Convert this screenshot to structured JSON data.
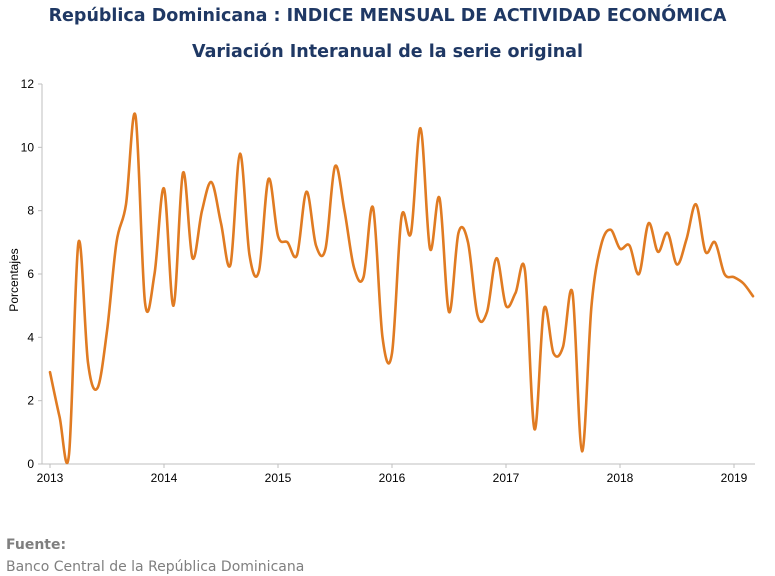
{
  "header": {
    "title": "República Dominicana : INDICE MENSUAL DE ACTIVIDAD ECONÓMICA",
    "subtitle": "Variación Interanual de la serie original"
  },
  "footer": {
    "source_label": "Fuente:",
    "source_text": "Banco Central de la República Dominicana"
  },
  "chart_data": {
    "type": "line",
    "title": "República Dominicana : INDICE MENSUAL DE ACTIVIDAD ECONÓMICA",
    "subtitle": "Variación Interanual de la serie original",
    "xlabel": "",
    "ylabel": "Porcentajes",
    "ylim": [
      0,
      12
    ],
    "yticks": [
      0,
      2,
      4,
      6,
      8,
      10,
      12
    ],
    "xticks": [
      "2013",
      "2014",
      "2015",
      "2016",
      "2017",
      "2018",
      "2019"
    ],
    "grid": false,
    "line_color": "#e07b22",
    "series": [
      {
        "x": [
          "2013-01",
          "2013-02",
          "2013-03",
          "2013-04",
          "2013-05",
          "2013-06",
          "2013-07",
          "2013-08",
          "2013-09",
          "2013-10",
          "2013-11",
          "2013-12",
          "2014-01",
          "2014-02",
          "2014-03",
          "2014-04",
          "2014-05",
          "2014-06",
          "2014-07",
          "2014-08",
          "2014-09",
          "2014-10",
          "2014-11",
          "2014-12",
          "2015-01",
          "2015-02",
          "2015-03",
          "2015-04",
          "2015-05",
          "2015-06",
          "2015-07",
          "2015-08",
          "2015-09",
          "2015-10",
          "2015-11",
          "2015-12",
          "2016-01",
          "2016-02",
          "2016-03",
          "2016-04",
          "2016-05",
          "2016-06",
          "2016-07",
          "2016-08",
          "2016-09",
          "2016-10",
          "2016-11",
          "2016-12",
          "2017-01",
          "2017-02",
          "2017-03",
          "2017-04",
          "2017-05",
          "2017-06",
          "2017-07",
          "2017-08",
          "2017-09",
          "2017-10",
          "2017-11",
          "2017-12",
          "2018-01",
          "2018-02",
          "2018-03",
          "2018-04",
          "2018-05",
          "2018-06",
          "2018-07",
          "2018-08",
          "2018-09",
          "2018-10",
          "2018-11",
          "2018-12",
          "2019-01",
          "2019-02",
          "2019-03"
        ],
        "values": [
          2.9,
          1.5,
          0.3,
          7.0,
          3.2,
          2.4,
          4.2,
          7.0,
          8.2,
          11.0,
          5.1,
          6.0,
          8.7,
          5.0,
          9.2,
          6.5,
          8.0,
          8.9,
          7.6,
          6.3,
          9.8,
          6.6,
          6.1,
          9.0,
          7.2,
          7.0,
          6.6,
          8.6,
          6.9,
          6.8,
          9.4,
          8.0,
          6.2,
          5.9,
          8.1,
          4.0,
          3.5,
          7.8,
          7.3,
          10.6,
          6.8,
          8.4,
          4.8,
          7.3,
          7.0,
          4.7,
          4.8,
          6.5,
          5.0,
          5.4,
          6.1,
          1.1,
          4.9,
          3.5,
          3.7,
          5.4,
          0.4,
          5.0,
          6.9,
          7.4,
          6.8,
          6.9,
          6.0,
          7.6,
          6.7,
          7.3,
          6.3,
          7.1,
          8.2,
          6.7,
          7.0,
          6.0,
          5.9,
          5.7,
          5.3
        ]
      }
    ]
  }
}
